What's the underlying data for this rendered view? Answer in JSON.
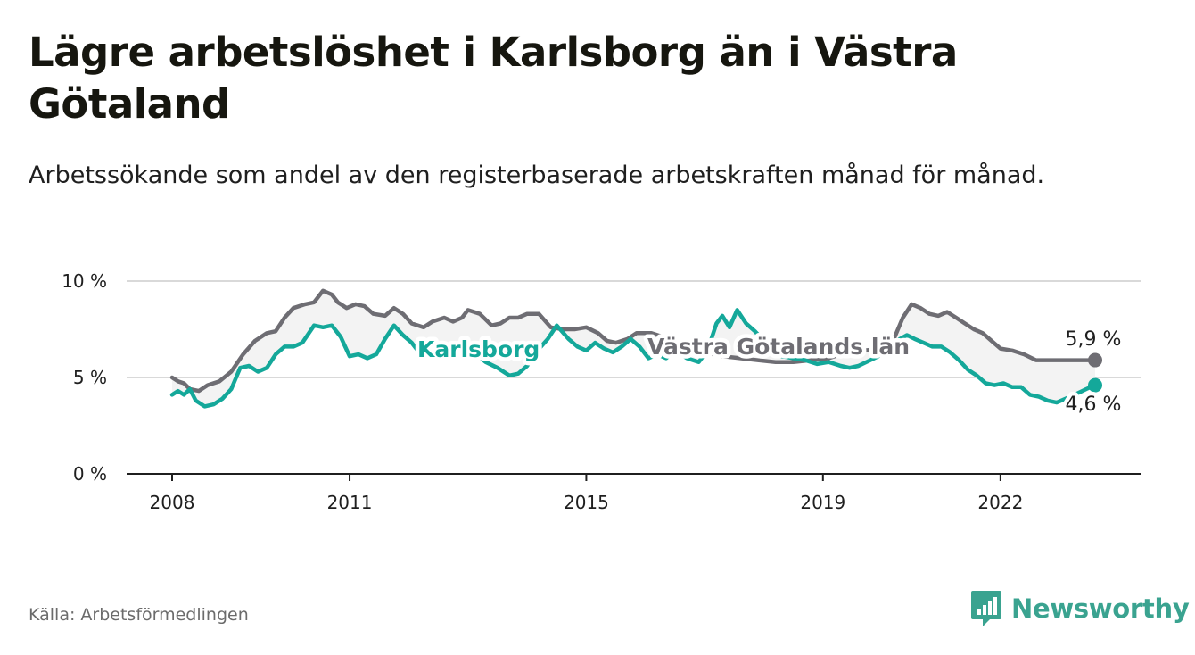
{
  "header": {
    "title": "Lägre arbetslöshet i Karlsborg än i Västra Götaland",
    "subtitle": "Arbetssökande som andel av den registerbaserade arbetskraften månad för månad."
  },
  "footer": {
    "source": "Källa: Arbetsförmedlingen",
    "brand": "Newsworthy",
    "brand_icon": "newsworthy-logo-icon"
  },
  "colors": {
    "karlsborg": "#14a89a",
    "vastra": "#6e6d73",
    "band": "#f3f3f3",
    "grid": "#d9d9d9",
    "brand": "#3aa390"
  },
  "chart_data": {
    "type": "line",
    "title": "Lägre arbetslöshet i Karlsborg än i Västra Götaland",
    "xlabel": "",
    "ylabel": "",
    "ylim": [
      0,
      10
    ],
    "xlim": [
      2008,
      2023.8
    ],
    "y_ticks": [
      0,
      5,
      10
    ],
    "y_tick_labels": [
      "0 %",
      "5 %",
      "10 %"
    ],
    "x_ticks": [
      2008,
      2011,
      2015,
      2019,
      2022
    ],
    "x_tick_labels": [
      "2008",
      "2011",
      "2015",
      "2019",
      "2022"
    ],
    "grid": true,
    "series": [
      {
        "name": "Västra Götalands län",
        "label": "Västra Götalands län",
        "end_label": "5,9 %",
        "points": [
          [
            2008.0,
            5.0
          ],
          [
            2008.1,
            4.8
          ],
          [
            2008.2,
            4.7
          ],
          [
            2008.3,
            4.4
          ],
          [
            2008.45,
            4.3
          ],
          [
            2008.6,
            4.6
          ],
          [
            2008.8,
            4.8
          ],
          [
            2009.0,
            5.3
          ],
          [
            2009.2,
            6.2
          ],
          [
            2009.4,
            6.9
          ],
          [
            2009.6,
            7.3
          ],
          [
            2009.75,
            7.4
          ],
          [
            2009.9,
            8.1
          ],
          [
            2010.05,
            8.6
          ],
          [
            2010.25,
            8.8
          ],
          [
            2010.4,
            8.9
          ],
          [
            2010.55,
            9.5
          ],
          [
            2010.7,
            9.3
          ],
          [
            2010.8,
            8.9
          ],
          [
            2010.95,
            8.6
          ],
          [
            2011.1,
            8.8
          ],
          [
            2011.25,
            8.7
          ],
          [
            2011.4,
            8.3
          ],
          [
            2011.6,
            8.2
          ],
          [
            2011.75,
            8.6
          ],
          [
            2011.9,
            8.3
          ],
          [
            2012.05,
            7.8
          ],
          [
            2012.25,
            7.6
          ],
          [
            2012.4,
            7.9
          ],
          [
            2012.6,
            8.1
          ],
          [
            2012.75,
            7.9
          ],
          [
            2012.9,
            8.1
          ],
          [
            2013.0,
            8.5
          ],
          [
            2013.2,
            8.3
          ],
          [
            2013.4,
            7.7
          ],
          [
            2013.55,
            7.8
          ],
          [
            2013.7,
            8.1
          ],
          [
            2013.85,
            8.1
          ],
          [
            2014.0,
            8.3
          ],
          [
            2014.2,
            8.3
          ],
          [
            2014.4,
            7.6
          ],
          [
            2014.6,
            7.5
          ],
          [
            2014.8,
            7.5
          ],
          [
            2015.0,
            7.6
          ],
          [
            2015.2,
            7.3
          ],
          [
            2015.35,
            6.9
          ],
          [
            2015.5,
            6.8
          ],
          [
            2015.7,
            7.0
          ],
          [
            2015.85,
            7.3
          ],
          [
            2016.1,
            7.3
          ],
          [
            2016.4,
            7.0
          ],
          [
            2016.7,
            6.5
          ],
          [
            2017.0,
            6.3
          ],
          [
            2017.3,
            6.1
          ],
          [
            2017.6,
            6.0
          ],
          [
            2017.9,
            5.9
          ],
          [
            2018.2,
            5.8
          ],
          [
            2018.5,
            5.8
          ],
          [
            2018.8,
            5.9
          ],
          [
            2019.1,
            6.0
          ],
          [
            2019.4,
            6.3
          ],
          [
            2019.7,
            6.4
          ],
          [
            2020.0,
            6.5
          ],
          [
            2020.2,
            7.0
          ],
          [
            2020.35,
            8.1
          ],
          [
            2020.5,
            8.8
          ],
          [
            2020.65,
            8.6
          ],
          [
            2020.8,
            8.3
          ],
          [
            2020.95,
            8.2
          ],
          [
            2021.1,
            8.4
          ],
          [
            2021.25,
            8.1
          ],
          [
            2021.4,
            7.8
          ],
          [
            2021.55,
            7.5
          ],
          [
            2021.7,
            7.3
          ],
          [
            2021.85,
            6.9
          ],
          [
            2022.0,
            6.5
          ],
          [
            2022.2,
            6.4
          ],
          [
            2022.4,
            6.2
          ],
          [
            2022.6,
            5.9
          ],
          [
            2022.9,
            5.9
          ],
          [
            2023.2,
            5.9
          ],
          [
            2023.4,
            5.9
          ],
          [
            2023.6,
            5.9
          ]
        ]
      },
      {
        "name": "Karlsborg",
        "label": "Karlsborg",
        "end_label": "4,6 %",
        "points": [
          [
            2008.0,
            4.1
          ],
          [
            2008.1,
            4.3
          ],
          [
            2008.2,
            4.1
          ],
          [
            2008.3,
            4.4
          ],
          [
            2008.4,
            3.8
          ],
          [
            2008.55,
            3.5
          ],
          [
            2008.7,
            3.6
          ],
          [
            2008.85,
            3.9
          ],
          [
            2009.0,
            4.4
          ],
          [
            2009.15,
            5.5
          ],
          [
            2009.3,
            5.6
          ],
          [
            2009.45,
            5.3
          ],
          [
            2009.6,
            5.5
          ],
          [
            2009.75,
            6.2
          ],
          [
            2009.9,
            6.6
          ],
          [
            2010.05,
            6.6
          ],
          [
            2010.2,
            6.8
          ],
          [
            2010.4,
            7.7
          ],
          [
            2010.55,
            7.6
          ],
          [
            2010.7,
            7.7
          ],
          [
            2010.85,
            7.1
          ],
          [
            2011.0,
            6.1
          ],
          [
            2011.15,
            6.2
          ],
          [
            2011.3,
            6.0
          ],
          [
            2011.45,
            6.2
          ],
          [
            2011.6,
            7.0
          ],
          [
            2011.75,
            7.7
          ],
          [
            2011.9,
            7.2
          ],
          [
            2012.05,
            6.8
          ],
          [
            2012.2,
            6.2
          ],
          [
            2012.35,
            6.3
          ],
          [
            2012.5,
            6.0
          ],
          [
            2012.65,
            6.0
          ],
          [
            2012.8,
            6.5
          ],
          [
            2012.95,
            6.2
          ],
          [
            2013.1,
            6.3
          ],
          [
            2013.3,
            5.8
          ],
          [
            2013.5,
            5.5
          ],
          [
            2013.7,
            5.1
          ],
          [
            2013.85,
            5.2
          ],
          [
            2014.0,
            5.6
          ],
          [
            2014.15,
            6.3
          ],
          [
            2014.35,
            7.0
          ],
          [
            2014.5,
            7.7
          ],
          [
            2014.7,
            7.0
          ],
          [
            2014.85,
            6.6
          ],
          [
            2015.0,
            6.4
          ],
          [
            2015.15,
            6.8
          ],
          [
            2015.3,
            6.5
          ],
          [
            2015.45,
            6.3
          ],
          [
            2015.6,
            6.6
          ],
          [
            2015.75,
            7.0
          ],
          [
            2015.9,
            6.6
          ],
          [
            2016.05,
            6.0
          ],
          [
            2016.2,
            6.2
          ],
          [
            2016.35,
            6.0
          ],
          [
            2016.5,
            6.4
          ],
          [
            2016.7,
            6.0
          ],
          [
            2016.9,
            5.8
          ],
          [
            2017.05,
            6.4
          ],
          [
            2017.2,
            7.8
          ],
          [
            2017.3,
            8.2
          ],
          [
            2017.42,
            7.6
          ],
          [
            2017.55,
            8.5
          ],
          [
            2017.7,
            7.8
          ],
          [
            2017.85,
            7.4
          ],
          [
            2018.0,
            6.9
          ],
          [
            2018.15,
            6.4
          ],
          [
            2018.3,
            6.1
          ],
          [
            2018.5,
            6.0
          ],
          [
            2018.7,
            5.9
          ],
          [
            2018.9,
            5.7
          ],
          [
            2019.1,
            5.8
          ],
          [
            2019.3,
            5.6
          ],
          [
            2019.45,
            5.5
          ],
          [
            2019.6,
            5.6
          ],
          [
            2019.8,
            5.9
          ],
          [
            2020.0,
            6.2
          ],
          [
            2020.15,
            6.6
          ],
          [
            2020.3,
            7.0
          ],
          [
            2020.42,
            7.2
          ],
          [
            2020.55,
            7.0
          ],
          [
            2020.7,
            6.8
          ],
          [
            2020.85,
            6.6
          ],
          [
            2021.0,
            6.6
          ],
          [
            2021.15,
            6.3
          ],
          [
            2021.3,
            5.9
          ],
          [
            2021.45,
            5.4
          ],
          [
            2021.6,
            5.1
          ],
          [
            2021.75,
            4.7
          ],
          [
            2021.9,
            4.6
          ],
          [
            2022.05,
            4.7
          ],
          [
            2022.2,
            4.5
          ],
          [
            2022.35,
            4.5
          ],
          [
            2022.5,
            4.1
          ],
          [
            2022.65,
            4.0
          ],
          [
            2022.8,
            3.8
          ],
          [
            2022.95,
            3.7
          ],
          [
            2023.1,
            3.9
          ],
          [
            2023.25,
            4.1
          ],
          [
            2023.45,
            4.4
          ],
          [
            2023.6,
            4.6
          ]
        ]
      }
    ]
  }
}
